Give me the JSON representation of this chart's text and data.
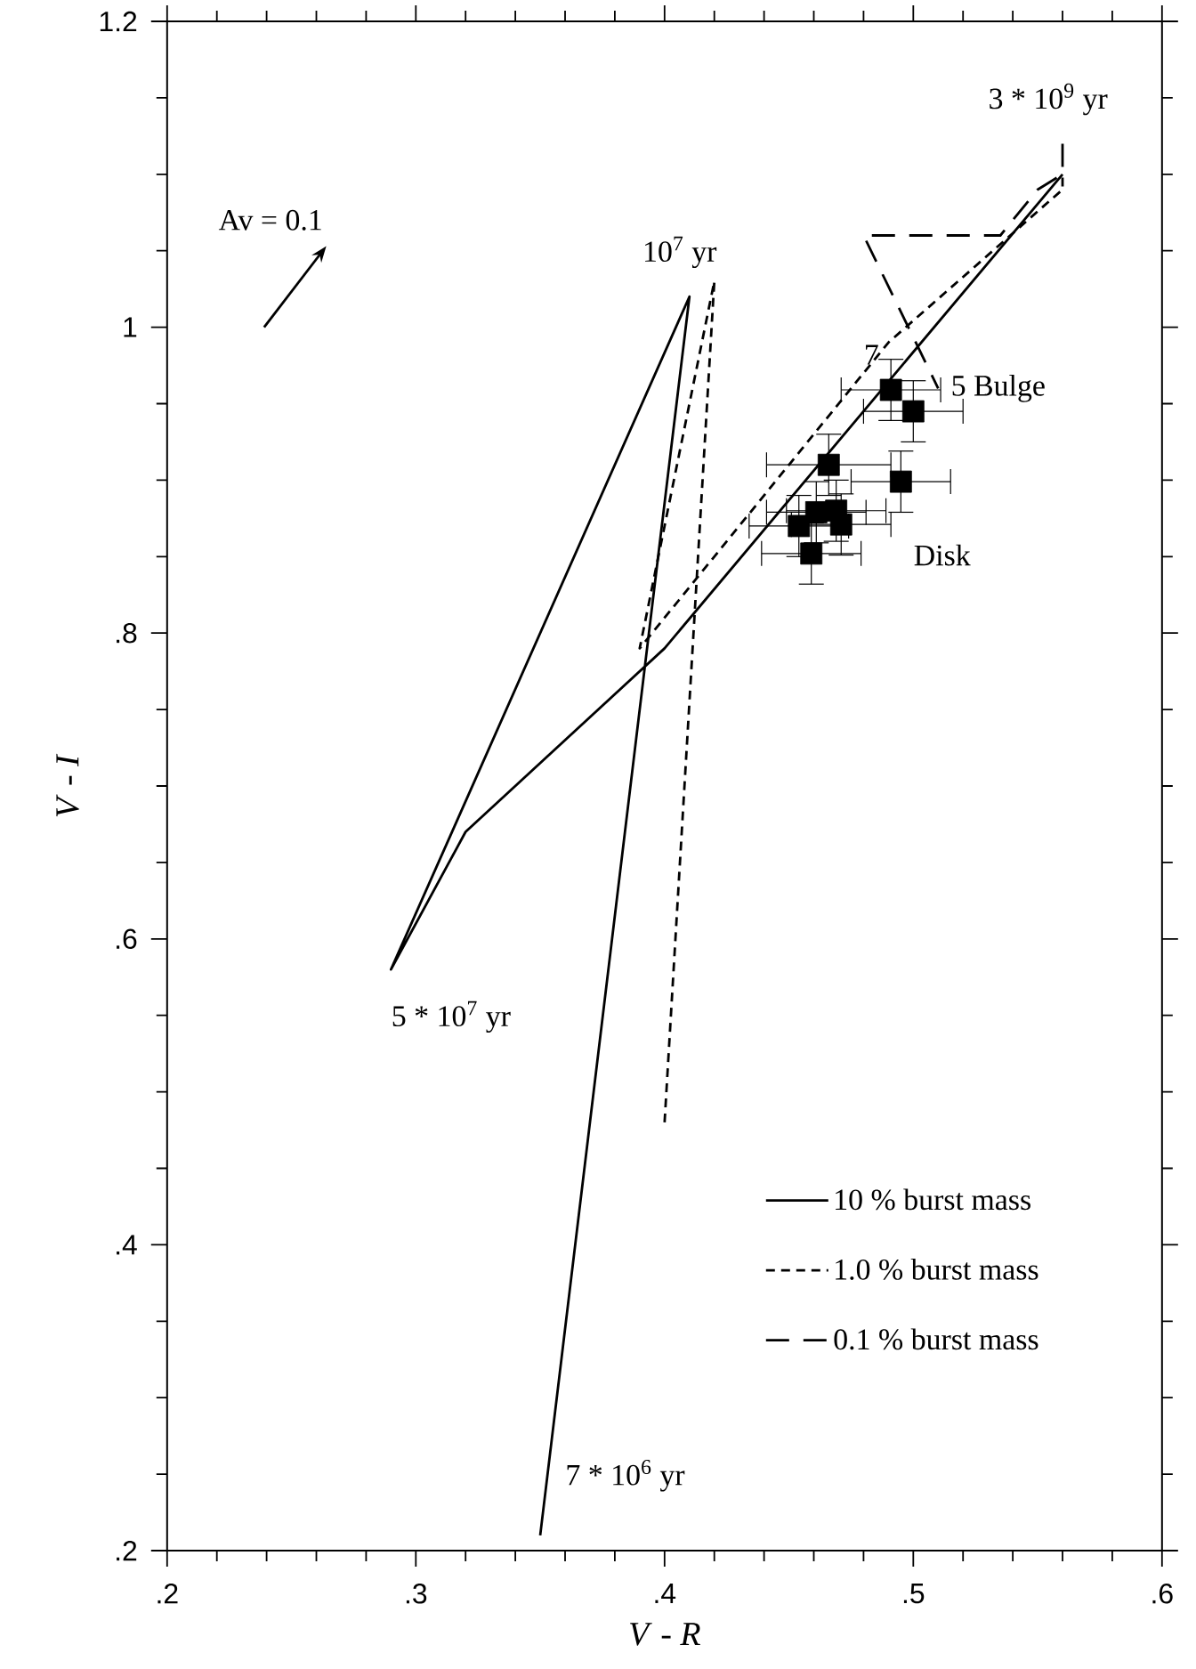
{
  "chart_data": {
    "type": "line",
    "xlabel": "*V* - *R*",
    "ylabel": "*V* - *I*",
    "xlim": [
      0.2,
      0.6
    ],
    "ylim": [
      0.2,
      1.2
    ],
    "xticks": [
      {
        "value": 0.2,
        "label": ".2"
      },
      {
        "value": 0.3,
        "label": ".3"
      },
      {
        "value": 0.4,
        "label": ".4"
      },
      {
        "value": 0.5,
        "label": ".5"
      },
      {
        "value": 0.6,
        "label": ".6"
      }
    ],
    "yticks": [
      {
        "value": 0.2,
        "label": ".2"
      },
      {
        "value": 0.4,
        "label": ".4"
      },
      {
        "value": 0.6,
        "label": ".6"
      },
      {
        "value": 0.8,
        "label": ".8"
      },
      {
        "value": 1.0,
        "label": "1"
      },
      {
        "value": 1.2,
        "label": "1.2"
      }
    ],
    "grid": false,
    "legend": "bottom right",
    "series": [
      {
        "name": "10 % burst mass",
        "color": "#000000",
        "line_style": "solid",
        "marker": "none",
        "x": [
          0.35,
          0.41,
          0.29,
          0.32,
          0.4,
          0.56
        ],
        "values": [
          0.21,
          1.02,
          0.58,
          0.67,
          0.79,
          1.1
        ]
      },
      {
        "name": "1.0 % burst mass",
        "color": "#000000",
        "line_style": "dotted",
        "marker": "none",
        "x": [
          0.4,
          0.42,
          0.39,
          0.41,
          0.49,
          0.56,
          0.56
        ],
        "values": [
          0.48,
          1.03,
          0.79,
          0.83,
          0.99,
          1.09,
          1.1
        ]
      },
      {
        "name": "0.1 % burst mass",
        "color": "#000000",
        "line_style": "dashed",
        "marker": "none",
        "x": [
          0.56,
          0.56,
          0.55,
          0.535,
          0.48,
          0.51
        ],
        "values": [
          1.12,
          1.1,
          1.09,
          1.06,
          1.06,
          0.96
        ]
      },
      {
        "type": "scatter",
        "color": "#000000",
        "marker": "square",
        "x": [
          0.491,
          0.5,
          0.466,
          0.495,
          0.469,
          0.461,
          0.454,
          0.471,
          0.459
        ],
        "values": [
          0.959,
          0.945,
          0.91,
          0.899,
          0.88,
          0.879,
          0.87,
          0.871,
          0.852
        ],
        "errors": [
          0.02,
          0.02,
          0.02,
          0.02,
          0.02,
          0.02,
          0.02,
          0.02,
          0.02
        ],
        "xerrors": [
          0.02,
          0.02,
          0.025,
          0.02,
          0.02,
          0.02,
          0.02,
          0.02,
          0.02
        ]
      }
    ],
    "annotations": [
      "Av = 0.1",
      "10$^{7}$ yr",
      "3 * 10$^{9}$ yr",
      "7",
      "5 Bulge",
      "Disk",
      "5 * 10$^{7}$ yr",
      "7 * 10$^{6}$ yr"
    ]
  }
}
